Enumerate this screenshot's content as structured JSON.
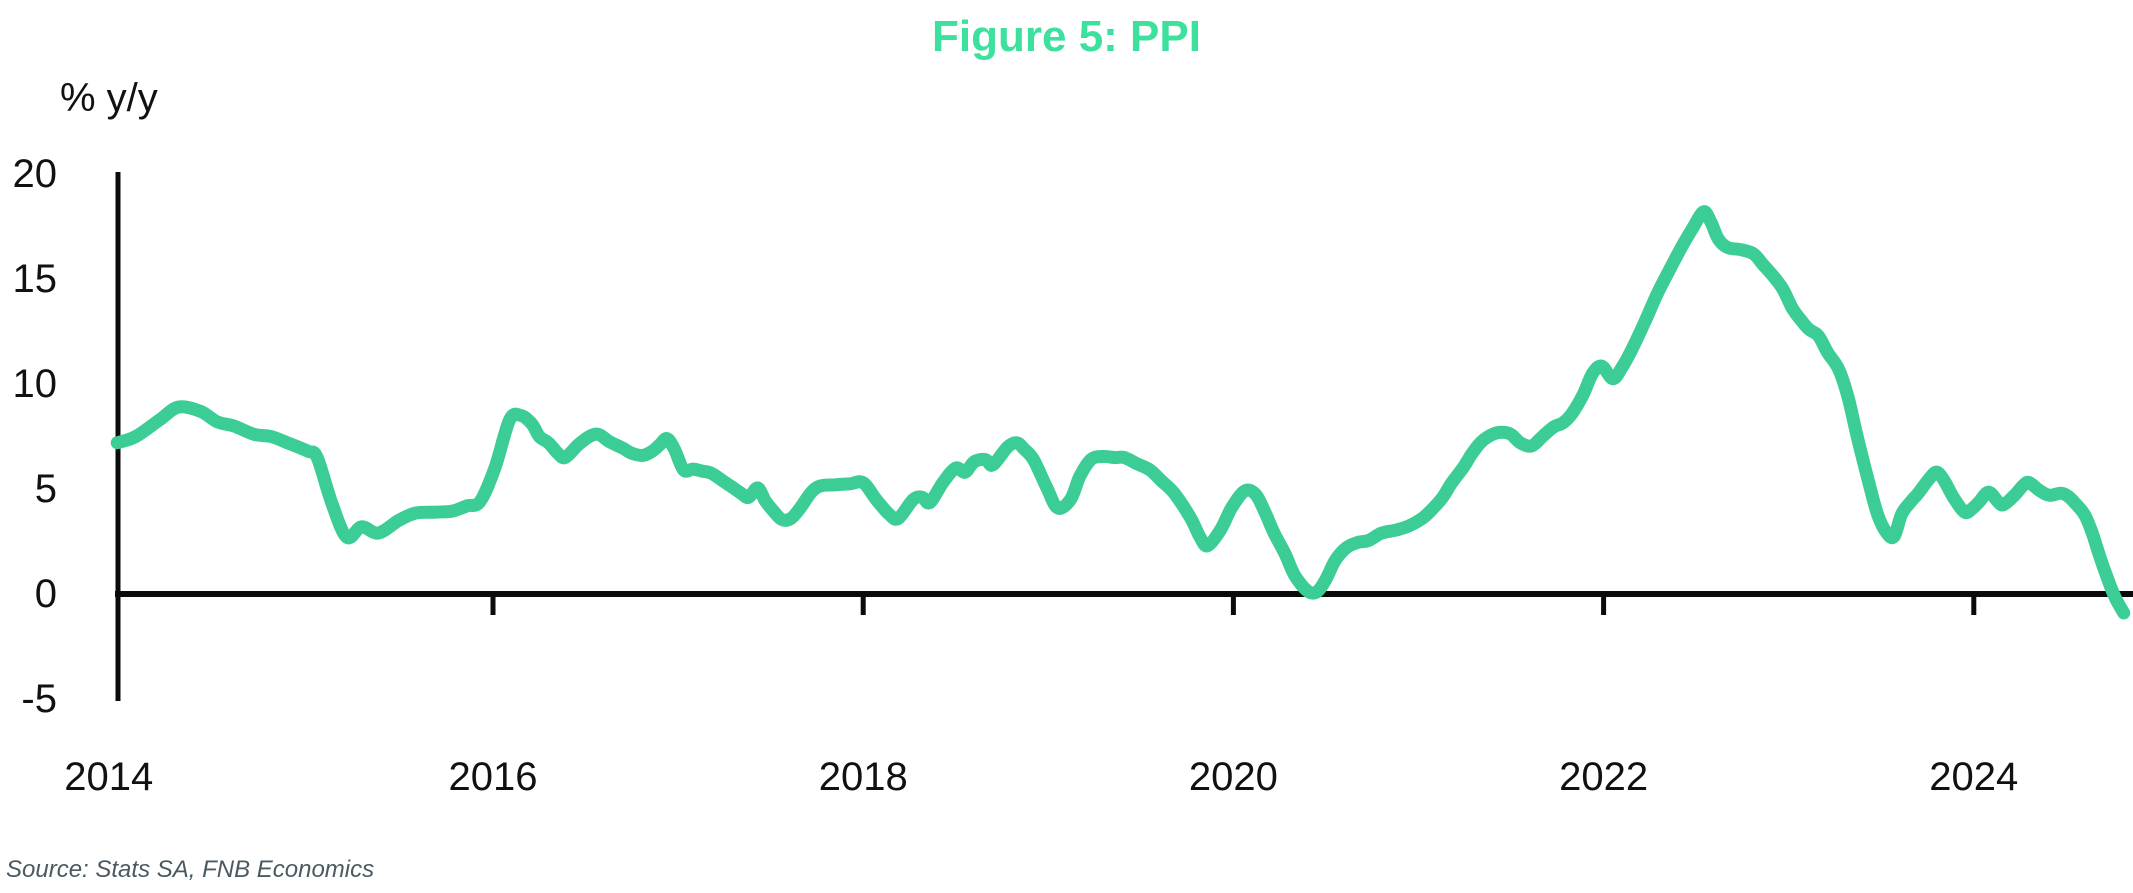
{
  "figure": {
    "title": "Figure 5: PPI",
    "y_axis_unit": "% y/y",
    "source_note": "Source: Stats SA, FNB Economics"
  },
  "colors": {
    "title_green": "#3BE19D",
    "line_green": "#3CCD96",
    "axis_black": "#0b0b0b",
    "source_gray": "#4a5a62"
  },
  "chart_data": {
    "type": "line",
    "title": "Figure 5: PPI",
    "xlabel": "",
    "ylabel": "% y/y",
    "grid": false,
    "legend_position": "none",
    "ylim": [
      -5,
      20
    ],
    "xlim": [
      2013.97,
      2024.85
    ],
    "y_tick_labels": [
      "20",
      "15",
      "10",
      "5",
      "0",
      "-5"
    ],
    "y_tick_values": [
      20,
      15,
      10,
      5,
      0,
      -5
    ],
    "x_tick_labels": [
      "2014",
      "2016",
      "2018",
      "2020",
      "2022",
      "2024"
    ],
    "x_tick_years": [
      2014,
      2016,
      2018,
      2020,
      2022,
      2024
    ],
    "series": [
      {
        "name": "PPI (% y/y)",
        "points": [
          [
            2013.97,
            7.2
          ],
          [
            2014.07,
            7.5
          ],
          [
            2014.2,
            8.3
          ],
          [
            2014.3,
            8.9
          ],
          [
            2014.42,
            8.7
          ],
          [
            2014.51,
            8.2
          ],
          [
            2014.6,
            8.0
          ],
          [
            2014.71,
            7.6
          ],
          [
            2014.8,
            7.5
          ],
          [
            2014.89,
            7.2
          ],
          [
            2015.0,
            6.8
          ],
          [
            2015.05,
            6.5
          ],
          [
            2015.13,
            4.3
          ],
          [
            2015.21,
            2.7
          ],
          [
            2015.29,
            3.2
          ],
          [
            2015.38,
            2.9
          ],
          [
            2015.49,
            3.5
          ],
          [
            2015.58,
            3.85
          ],
          [
            2015.69,
            3.9
          ],
          [
            2015.78,
            3.95
          ],
          [
            2015.86,
            4.2
          ],
          [
            2015.93,
            4.4
          ],
          [
            2016.01,
            6.0
          ],
          [
            2016.09,
            8.3
          ],
          [
            2016.15,
            8.5
          ],
          [
            2016.21,
            8.1
          ],
          [
            2016.25,
            7.5
          ],
          [
            2016.3,
            7.2
          ],
          [
            2016.35,
            6.7
          ],
          [
            2016.39,
            6.5
          ],
          [
            2016.46,
            7.1
          ],
          [
            2016.52,
            7.5
          ],
          [
            2016.57,
            7.6
          ],
          [
            2016.63,
            7.25
          ],
          [
            2016.7,
            6.95
          ],
          [
            2016.75,
            6.7
          ],
          [
            2016.81,
            6.6
          ],
          [
            2016.86,
            6.8
          ],
          [
            2016.9,
            7.1
          ],
          [
            2016.94,
            7.4
          ],
          [
            2016.98,
            6.9
          ],
          [
            2017.03,
            5.9
          ],
          [
            2017.08,
            5.95
          ],
          [
            2017.13,
            5.85
          ],
          [
            2017.18,
            5.75
          ],
          [
            2017.24,
            5.4
          ],
          [
            2017.29,
            5.1
          ],
          [
            2017.34,
            4.8
          ],
          [
            2017.38,
            4.6
          ],
          [
            2017.43,
            5.05
          ],
          [
            2017.47,
            4.45
          ],
          [
            2017.51,
            4.0
          ],
          [
            2017.56,
            3.55
          ],
          [
            2017.61,
            3.6
          ],
          [
            2017.66,
            4.1
          ],
          [
            2017.72,
            4.85
          ],
          [
            2017.77,
            5.15
          ],
          [
            2017.85,
            5.2
          ],
          [
            2017.93,
            5.25
          ],
          [
            2018.0,
            5.3
          ],
          [
            2018.07,
            4.5
          ],
          [
            2018.14,
            3.8
          ],
          [
            2018.19,
            3.6
          ],
          [
            2018.27,
            4.5
          ],
          [
            2018.32,
            4.6
          ],
          [
            2018.36,
            4.35
          ],
          [
            2018.43,
            5.3
          ],
          [
            2018.5,
            6.0
          ],
          [
            2018.55,
            5.8
          ],
          [
            2018.6,
            6.3
          ],
          [
            2018.66,
            6.4
          ],
          [
            2018.7,
            6.15
          ],
          [
            2018.78,
            7.0
          ],
          [
            2018.83,
            7.2
          ],
          [
            2018.87,
            6.9
          ],
          [
            2018.92,
            6.4
          ],
          [
            2018.99,
            5.1
          ],
          [
            2019.05,
            4.1
          ],
          [
            2019.12,
            4.5
          ],
          [
            2019.17,
            5.6
          ],
          [
            2019.23,
            6.4
          ],
          [
            2019.29,
            6.55
          ],
          [
            2019.36,
            6.5
          ],
          [
            2019.41,
            6.5
          ],
          [
            2019.48,
            6.2
          ],
          [
            2019.55,
            5.9
          ],
          [
            2019.61,
            5.4
          ],
          [
            2019.68,
            4.8
          ],
          [
            2019.77,
            3.6
          ],
          [
            2019.82,
            2.7
          ],
          [
            2019.86,
            2.3
          ],
          [
            2019.93,
            3.05
          ],
          [
            2019.99,
            4.1
          ],
          [
            2020.06,
            4.9
          ],
          [
            2020.12,
            4.75
          ],
          [
            2020.17,
            3.9
          ],
          [
            2020.22,
            2.9
          ],
          [
            2020.28,
            1.9
          ],
          [
            2020.33,
            0.9
          ],
          [
            2020.4,
            0.15
          ],
          [
            2020.45,
            0.1
          ],
          [
            2020.5,
            0.7
          ],
          [
            2020.55,
            1.6
          ],
          [
            2020.61,
            2.2
          ],
          [
            2020.67,
            2.45
          ],
          [
            2020.73,
            2.55
          ],
          [
            2020.8,
            2.9
          ],
          [
            2020.88,
            3.05
          ],
          [
            2020.95,
            3.25
          ],
          [
            2021.02,
            3.6
          ],
          [
            2021.07,
            4.0
          ],
          [
            2021.13,
            4.6
          ],
          [
            2021.18,
            5.3
          ],
          [
            2021.24,
            6.0
          ],
          [
            2021.29,
            6.7
          ],
          [
            2021.34,
            7.25
          ],
          [
            2021.4,
            7.6
          ],
          [
            2021.45,
            7.7
          ],
          [
            2021.5,
            7.6
          ],
          [
            2021.55,
            7.2
          ],
          [
            2021.61,
            7.05
          ],
          [
            2021.67,
            7.5
          ],
          [
            2021.73,
            7.95
          ],
          [
            2021.78,
            8.15
          ],
          [
            2021.83,
            8.6
          ],
          [
            2021.89,
            9.5
          ],
          [
            2021.94,
            10.5
          ],
          [
            2021.99,
            10.85
          ],
          [
            2022.05,
            10.25
          ],
          [
            2022.1,
            10.8
          ],
          [
            2022.15,
            11.6
          ],
          [
            2022.22,
            12.9
          ],
          [
            2022.29,
            14.3
          ],
          [
            2022.36,
            15.5
          ],
          [
            2022.42,
            16.5
          ],
          [
            2022.48,
            17.4
          ],
          [
            2022.54,
            18.2
          ],
          [
            2022.58,
            17.7
          ],
          [
            2022.62,
            16.9
          ],
          [
            2022.67,
            16.5
          ],
          [
            2022.74,
            16.4
          ],
          [
            2022.81,
            16.2
          ],
          [
            2022.86,
            15.7
          ],
          [
            2022.92,
            15.1
          ],
          [
            2022.97,
            14.5
          ],
          [
            2023.02,
            13.6
          ],
          [
            2023.07,
            13.0
          ],
          [
            2023.11,
            12.6
          ],
          [
            2023.16,
            12.3
          ],
          [
            2023.21,
            11.5
          ],
          [
            2023.27,
            10.7
          ],
          [
            2023.32,
            9.4
          ],
          [
            2023.37,
            7.5
          ],
          [
            2023.43,
            5.4
          ],
          [
            2023.48,
            3.8
          ],
          [
            2023.53,
            2.9
          ],
          [
            2023.57,
            2.75
          ],
          [
            2023.61,
            3.8
          ],
          [
            2023.66,
            4.4
          ],
          [
            2023.7,
            4.8
          ],
          [
            2023.76,
            5.5
          ],
          [
            2023.8,
            5.8
          ],
          [
            2023.84,
            5.4
          ],
          [
            2023.89,
            4.6
          ],
          [
            2023.95,
            3.9
          ],
          [
            2023.99,
            4.05
          ],
          [
            2024.03,
            4.4
          ],
          [
            2024.08,
            4.85
          ],
          [
            2024.13,
            4.4
          ],
          [
            2024.16,
            4.25
          ],
          [
            2024.22,
            4.7
          ],
          [
            2024.27,
            5.2
          ],
          [
            2024.3,
            5.3
          ],
          [
            2024.36,
            4.9
          ],
          [
            2024.41,
            4.7
          ],
          [
            2024.47,
            4.8
          ],
          [
            2024.51,
            4.65
          ],
          [
            2024.55,
            4.3
          ],
          [
            2024.6,
            3.75
          ],
          [
            2024.64,
            2.9
          ],
          [
            2024.68,
            1.8
          ],
          [
            2024.72,
            0.8
          ],
          [
            2024.76,
            -0.1
          ],
          [
            2024.8,
            -0.75
          ],
          [
            2024.81,
            -0.9
          ]
        ]
      }
    ]
  }
}
